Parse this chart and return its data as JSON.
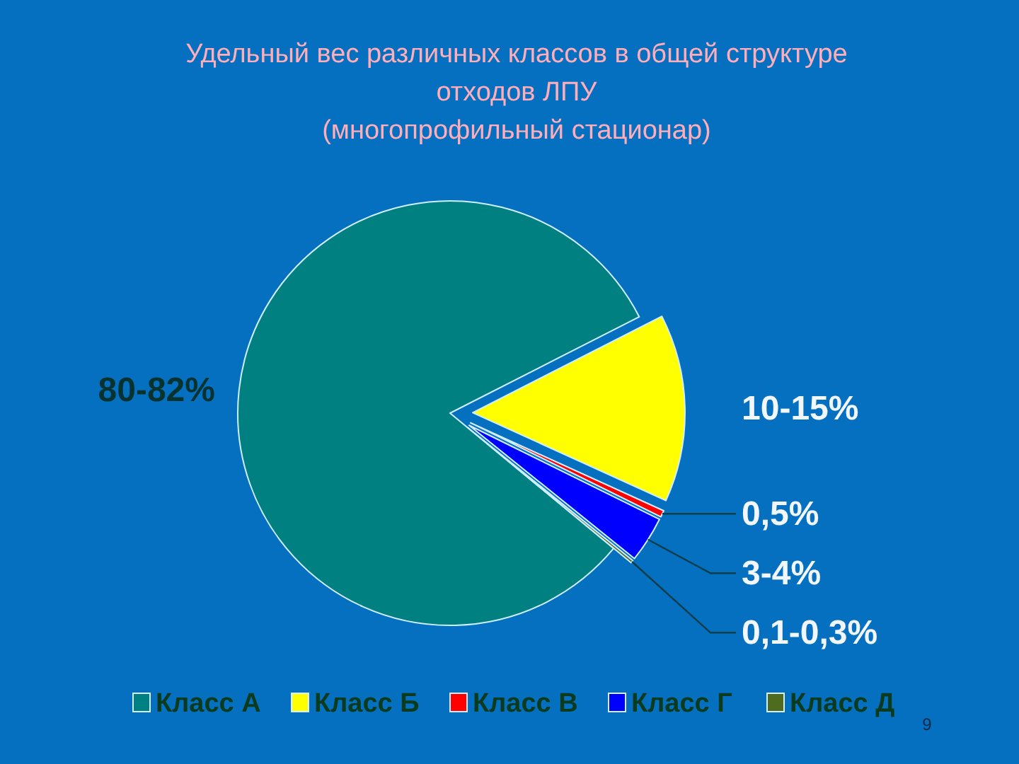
{
  "chart_data": {
    "type": "pie",
    "title": "Удельный вес различных классов в общей структуре\nотходов ЛПУ\n(многопрофильный стационар)",
    "categories": [
      "Класс А",
      "Класс Б",
      "Класс В",
      "Класс Г",
      "Класс Д"
    ],
    "values": [
      81.5,
      14.3,
      0.5,
      3.5,
      0.2
    ],
    "value_labels": [
      null,
      null,
      "0,5%",
      null,
      null
    ],
    "colors": [
      "#008080",
      "#ffff00",
      "#ff0000",
      "#0000ff",
      "#4f6b1e"
    ],
    "legend": "bottom",
    "annotations": [
      {
        "text": "80-82%",
        "x": "Класс А"
      },
      {
        "text": "10-15%",
        "x": "Класс Б"
      },
      {
        "text": "3-4%",
        "x": "Класс Г"
      },
      {
        "text": "0,1-0,3%",
        "x": "Класс Д"
      },
      "9"
    ]
  }
}
